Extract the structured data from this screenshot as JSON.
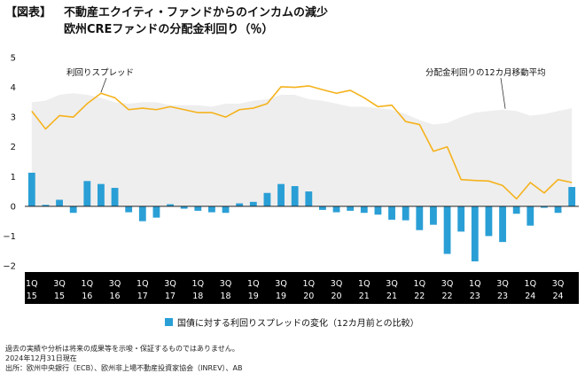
{
  "header": {
    "tag": "【図表】",
    "title": "不動産エクイティ・ファンドからのインカムの減少",
    "subtitle": "欧州CREファンドの分配金利回り（％）"
  },
  "chart_data": {
    "type": "bar",
    "x": [
      "1Q15",
      "2Q15",
      "3Q15",
      "4Q15",
      "1Q16",
      "2Q16",
      "3Q16",
      "4Q16",
      "1Q17",
      "2Q17",
      "3Q17",
      "4Q17",
      "1Q18",
      "2Q18",
      "3Q18",
      "4Q18",
      "1Q19",
      "2Q19",
      "3Q19",
      "4Q19",
      "1Q20",
      "2Q20",
      "3Q20",
      "4Q20",
      "1Q21",
      "2Q21",
      "3Q21",
      "4Q21",
      "1Q22",
      "2Q22",
      "3Q22",
      "4Q22",
      "1Q23",
      "2Q23",
      "3Q23",
      "4Q23",
      "1Q24",
      "2Q24",
      "3Q24",
      "4Q24"
    ],
    "tick_labels": [
      {
        "q": "1Q",
        "y": "15",
        "i": 0
      },
      {
        "q": "3Q",
        "y": "15",
        "i": 2
      },
      {
        "q": "1Q",
        "y": "16",
        "i": 4
      },
      {
        "q": "3Q",
        "y": "16",
        "i": 6
      },
      {
        "q": "1Q",
        "y": "17",
        "i": 8
      },
      {
        "q": "3Q",
        "y": "17",
        "i": 10
      },
      {
        "q": "1Q",
        "y": "18",
        "i": 12
      },
      {
        "q": "3Q",
        "y": "18",
        "i": 14
      },
      {
        "q": "1Q",
        "y": "19",
        "i": 16
      },
      {
        "q": "3Q",
        "y": "19",
        "i": 18
      },
      {
        "q": "1Q",
        "y": "20",
        "i": 20
      },
      {
        "q": "3Q",
        "y": "20",
        "i": 22
      },
      {
        "q": "1Q",
        "y": "21",
        "i": 24
      },
      {
        "q": "3Q",
        "y": "21",
        "i": 26
      },
      {
        "q": "1Q",
        "y": "22",
        "i": 28
      },
      {
        "q": "3Q",
        "y": "22",
        "i": 30
      },
      {
        "q": "1Q",
        "y": "23",
        "i": 32
      },
      {
        "q": "3Q",
        "y": "23",
        "i": 34
      },
      {
        "q": "1Q",
        "y": "24",
        "i": 36
      },
      {
        "q": "3Q",
        "y": "24",
        "i": 38
      }
    ],
    "y_ticks": [
      5,
      4,
      3,
      2,
      1,
      0,
      -1,
      -2
    ],
    "y_tick_labels": [
      "5",
      "4",
      "3",
      "2",
      "1",
      "0",
      "−1",
      "−2"
    ],
    "ylim": [
      -2,
      5
    ],
    "series": [
      {
        "name": "国債に対する利回りスプレッドの変化（12カ月前との比較）",
        "kind": "bar",
        "color": "#2a9fd6",
        "values": [
          1.13,
          0.05,
          0.22,
          -0.22,
          0.85,
          0.75,
          0.62,
          -0.2,
          -0.5,
          -0.38,
          0.07,
          -0.08,
          -0.15,
          -0.2,
          -0.22,
          0.1,
          0.15,
          0.45,
          0.75,
          0.68,
          0.5,
          -0.12,
          -0.2,
          -0.15,
          -0.22,
          -0.28,
          -0.45,
          -0.47,
          -0.8,
          -0.62,
          -1.6,
          -0.85,
          -1.85,
          -1.0,
          -1.2,
          -0.25,
          -0.65,
          -0.05,
          -0.22,
          0.65
        ]
      },
      {
        "name": "利回りスプレッド",
        "kind": "area",
        "color": "#eeeeee",
        "values": [
          3.5,
          3.55,
          3.75,
          3.8,
          3.75,
          3.65,
          3.5,
          3.45,
          3.5,
          3.5,
          3.4,
          3.4,
          3.4,
          3.35,
          3.45,
          3.45,
          3.55,
          3.6,
          3.75,
          3.75,
          3.6,
          3.55,
          3.45,
          3.35,
          3.35,
          3.3,
          3.25,
          3.1,
          2.9,
          2.75,
          2.8,
          3.0,
          3.15,
          3.2,
          3.25,
          3.2,
          3.05,
          3.1,
          3.2,
          3.3
        ]
      },
      {
        "name": "分配金利回りの12カ月移動平均",
        "kind": "line",
        "color": "#f5b21c",
        "values": [
          3.2,
          2.6,
          3.05,
          3.0,
          3.45,
          3.8,
          3.65,
          3.25,
          3.3,
          3.25,
          3.35,
          3.25,
          3.15,
          3.15,
          3.0,
          3.25,
          3.3,
          3.45,
          4.02,
          4.0,
          4.05,
          3.92,
          3.8,
          3.9,
          3.65,
          3.35,
          3.4,
          2.85,
          2.75,
          1.85,
          2.0,
          0.9,
          0.87,
          0.85,
          0.7,
          0.25,
          0.8,
          0.45,
          0.9,
          0.8
        ]
      }
    ],
    "annotations": [
      {
        "text": "利回りスプレッド",
        "i": 5
      },
      {
        "text": "分配金利回りの12カ月移動平均",
        "i": 34
      }
    ],
    "legend": "bottom-center"
  },
  "legend": {
    "label": "国債に対する利回りスプレッドの変化（12カ月前との比較）"
  },
  "notes": {
    "line1": "過去の実績や分析は将来の成果等を示唆・保証するものではありません。",
    "line2": "2024年12月31日現在",
    "line3": "出所：欧州中央銀行（ECB）、欧州非上場不動産投資家協会（INREV）、AB"
  }
}
